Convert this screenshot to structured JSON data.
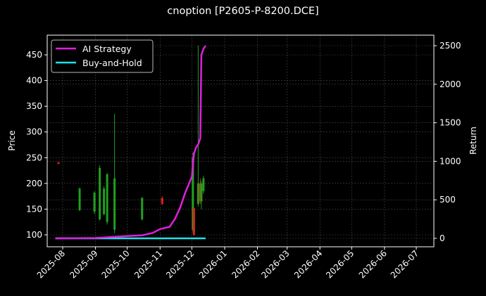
{
  "chart_data": {
    "type": "line",
    "title": "cnoption [P2605-P-8200.DCE]",
    "xlabel": "",
    "ylabel": "Price",
    "ylabel_right": "Return",
    "x_ticks": [
      "2025-08",
      "2025-09",
      "2025-10",
      "2025-11",
      "2025-12",
      "2026-01",
      "2026-02",
      "2026-03",
      "2026-04",
      "2026-05",
      "2026-06",
      "2026-07"
    ],
    "y_ticks_left": [
      100,
      150,
      200,
      250,
      300,
      350,
      400,
      450
    ],
    "y_ticks_right": [
      0,
      500,
      1000,
      1500,
      2000,
      2500
    ],
    "ylim_left": [
      77,
      486
    ],
    "ylim_right": [
      -110,
      2615
    ],
    "grid": true,
    "legend_position": "upper left",
    "legend": [
      "AI Strategy",
      "Buy-and-Hold"
    ],
    "colors": {
      "background": "#000000",
      "ai_strategy": "#e01ee0",
      "buy_and_hold": "#22e0e8",
      "candle_up": "#1fa01f",
      "candle_down": "#e0201e",
      "grid": "#4a4a4a",
      "text": "#ffffff"
    },
    "series": [
      {
        "name": "AI Strategy",
        "axis": "right",
        "x": [
          "2025-07-25",
          "2025-09-01",
          "2025-09-20",
          "2025-10-01",
          "2025-10-15",
          "2025-10-25",
          "2025-11-01",
          "2025-11-10",
          "2025-11-15",
          "2025-11-20",
          "2025-11-25",
          "2025-11-28",
          "2025-12-01",
          "2025-12-03",
          "2025-12-05",
          "2025-12-07",
          "2025-12-09",
          "2025-12-10",
          "2025-12-12",
          "2025-12-14"
        ],
        "values": [
          0,
          5,
          20,
          30,
          40,
          70,
          120,
          150,
          250,
          400,
          600,
          700,
          800,
          1100,
          1180,
          1220,
          1300,
          2380,
          2460,
          2500
        ]
      },
      {
        "name": "Buy-and-Hold",
        "axis": "right",
        "x": [
          "2025-07-25",
          "2025-12-14"
        ],
        "values": [
          0,
          0
        ]
      }
    ],
    "candles": [
      {
        "date": "2025-07-28",
        "open": 241,
        "close": 238,
        "high": 242,
        "low": 237,
        "dir": "down"
      },
      {
        "date": "2025-08-17",
        "open": 148,
        "close": 190,
        "high": 192,
        "low": 146,
        "dir": "up"
      },
      {
        "date": "2025-08-31",
        "open": 145,
        "close": 182,
        "high": 185,
        "low": 140,
        "dir": "up"
      },
      {
        "date": "2025-09-05",
        "open": 130,
        "close": 230,
        "high": 235,
        "low": 128,
        "dir": "up"
      },
      {
        "date": "2025-09-09",
        "open": 140,
        "close": 190,
        "high": 195,
        "low": 138,
        "dir": "up"
      },
      {
        "date": "2025-09-12",
        "open": 125,
        "close": 218,
        "high": 220,
        "low": 120,
        "dir": "up"
      },
      {
        "date": "2025-09-19",
        "open": 110,
        "close": 210,
        "high": 335,
        "low": 103,
        "dir": "up"
      },
      {
        "date": "2025-10-15",
        "open": 130,
        "close": 172,
        "high": 173,
        "low": 128,
        "dir": "up"
      },
      {
        "date": "2025-11-03",
        "open": 172,
        "close": 160,
        "high": 175,
        "low": 158,
        "dir": "down"
      },
      {
        "date": "2025-12-02",
        "open": 110,
        "close": 250,
        "high": 260,
        "low": 105,
        "dir": "up"
      },
      {
        "date": "2025-12-03",
        "open": 152,
        "close": 100,
        "high": 153,
        "low": 98,
        "dir": "down"
      },
      {
        "date": "2025-12-07",
        "open": 160,
        "close": 200,
        "high": 468,
        "low": 155,
        "dir": "up"
      },
      {
        "date": "2025-12-09",
        "open": 200,
        "close": 165,
        "high": 210,
        "low": 160,
        "dir": "down"
      },
      {
        "date": "2025-12-10",
        "open": 165,
        "close": 200,
        "high": 205,
        "low": 150,
        "dir": "up"
      },
      {
        "date": "2025-12-12",
        "open": 185,
        "close": 210,
        "high": 215,
        "low": 180,
        "dir": "up"
      }
    ]
  }
}
